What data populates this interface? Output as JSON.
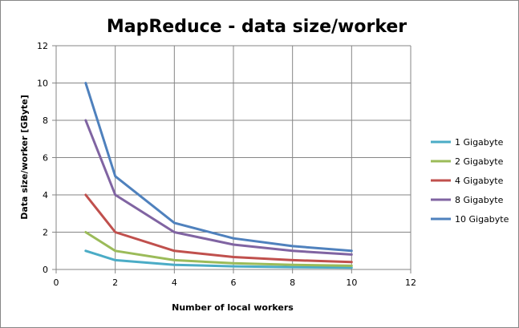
{
  "chart_data": {
    "type": "line",
    "title": "MapReduce - data size/worker",
    "xlabel": "Number of local workers",
    "ylabel": "Data size/worker [GByte]",
    "xlim": [
      0,
      12
    ],
    "ylim": [
      0,
      12
    ],
    "x_ticks": [
      0,
      2,
      4,
      6,
      8,
      10,
      12
    ],
    "y_ticks": [
      0,
      2,
      4,
      6,
      8,
      10,
      12
    ],
    "grid": true,
    "legend_position": "right",
    "x": [
      1,
      2,
      4,
      6,
      8,
      10
    ],
    "series": [
      {
        "name": "1 Gigabyte",
        "color": "#4BACC6",
        "values": [
          1,
          0.5,
          0.25,
          0.1667,
          0.125,
          0.1
        ]
      },
      {
        "name": "2 Gigabyte",
        "color": "#9BBB59",
        "values": [
          2,
          1,
          0.5,
          0.3333,
          0.25,
          0.2
        ]
      },
      {
        "name": "4 Gigabyte",
        "color": "#C0504D",
        "values": [
          4,
          2,
          1,
          0.6667,
          0.5,
          0.4
        ]
      },
      {
        "name": "8 Gigabyte",
        "color": "#8064A2",
        "values": [
          8,
          4,
          2,
          1.3333,
          1,
          0.8
        ]
      },
      {
        "name": "10 Gigabyte",
        "color": "#4F81BD",
        "values": [
          10,
          5,
          2.5,
          1.6667,
          1.25,
          1
        ]
      }
    ]
  }
}
